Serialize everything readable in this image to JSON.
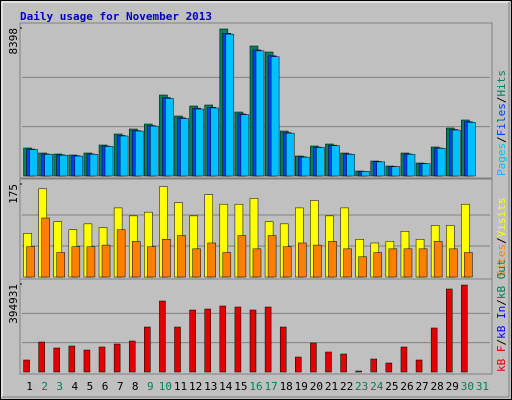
{
  "title": "Daily usage for November 2013",
  "categories": [
    "1",
    "2",
    "3",
    "4",
    "5",
    "6",
    "7",
    "8",
    "9",
    "10",
    "11",
    "12",
    "13",
    "14",
    "15",
    "16",
    "17",
    "18",
    "19",
    "20",
    "21",
    "22",
    "23",
    "24",
    "25",
    "26",
    "27",
    "28",
    "29",
    "30",
    "31"
  ],
  "category_colors": [
    "#000000",
    "#00805c",
    "#00805c",
    "#000000",
    "#000000",
    "#000000",
    "#000000",
    "#000000",
    "#00805c",
    "#00805c",
    "#000000",
    "#000000",
    "#000000",
    "#000000",
    "#000000",
    "#00805c",
    "#00805c",
    "#000000",
    "#000000",
    "#000000",
    "#000000",
    "#000000",
    "#00805c",
    "#00805c",
    "#000000",
    "#000000",
    "#000000",
    "#000000",
    "#000000",
    "#00805c",
    "#00805c"
  ],
  "separator": "/",
  "chart_data": [
    {
      "type": "bar",
      "ylim": [
        0,
        8398
      ],
      "yticks": [
        8398
      ],
      "series": [
        {
          "name": "Hits",
          "color": "#00805c",
          "values": [
            1589,
            1305,
            1248,
            1192,
            1305,
            1759,
            2383,
            2667,
            2950,
            4596,
            3404,
            3972,
            4029,
            8341,
            3631,
            7377,
            7036,
            2553,
            1135,
            1702,
            1816,
            1305,
            284,
            851,
            567,
            1305,
            738,
            1646,
            2724,
            3178,
            null
          ]
        },
        {
          "name": "Files",
          "color": "#0040ff",
          "values": [
            1530,
            1250,
            1200,
            1150,
            1250,
            1700,
            2300,
            2580,
            2860,
            4450,
            3300,
            3850,
            3900,
            8100,
            3520,
            7150,
            6820,
            2460,
            1090,
            1640,
            1750,
            1250,
            270,
            820,
            540,
            1250,
            710,
            1590,
            2640,
            3080,
            null
          ]
        },
        {
          "name": "Pages",
          "color": "#00c0ff",
          "values": [
            1500,
            1230,
            1180,
            1130,
            1230,
            1680,
            2270,
            2550,
            2830,
            4400,
            3260,
            3800,
            3860,
            8050,
            3480,
            7100,
            6770,
            2430,
            1070,
            1620,
            1720,
            1230,
            260,
            800,
            530,
            1230,
            700,
            1570,
            2610,
            3040,
            null
          ]
        }
      ],
      "legend_order": [
        2,
        1,
        0
      ]
    },
    {
      "type": "bar",
      "ylim": [
        0,
        175
      ],
      "yticks": [
        175
      ],
      "series": [
        {
          "name": "Visits",
          "color": "#ffff00",
          "values": [
            82,
            166,
            104,
            89,
            100,
            93,
            130,
            115,
            122,
            170,
            140,
            115,
            155,
            137,
            137,
            148,
            104,
            100,
            130,
            144,
            115,
            130,
            71,
            64,
            67,
            86,
            71,
            97,
            97,
            137,
            null
          ]
        },
        {
          "name": "Sites",
          "color": "#ff8000",
          "values": [
            57,
            111,
            46,
            57,
            57,
            60,
            89,
            67,
            57,
            71,
            78,
            53,
            64,
            46,
            78,
            53,
            78,
            57,
            64,
            60,
            67,
            53,
            38,
            46,
            53,
            53,
            53,
            67,
            53,
            46,
            null
          ]
        }
      ],
      "legend_order": [
        1,
        0
      ]
    },
    {
      "type": "bar",
      "ylim": [
        0,
        394931
      ],
      "yticks": [
        394931
      ],
      "series": [
        {
          "name": "kB F",
          "color": "#e00000",
          "values": [
            53854,
            134636,
            107708,
            116684,
            98733,
            112196,
            125660,
            139123,
            201953,
            318637,
            201953,
            278247,
            282730,
            296198,
            291710,
            278247,
            291710,
            201953,
            67318,
            130148,
            89757,
            80781,
            4488,
            58342,
            40390,
            112196,
            53854,
            197466,
            372493,
            390443,
            null
          ]
        }
      ],
      "legend_order": [
        0
      ],
      "extra_legend": [
        {
          "name": "kB In",
          "color": "#0000ff"
        },
        {
          "name": "kB Out",
          "color": "#00805c"
        }
      ]
    }
  ]
}
